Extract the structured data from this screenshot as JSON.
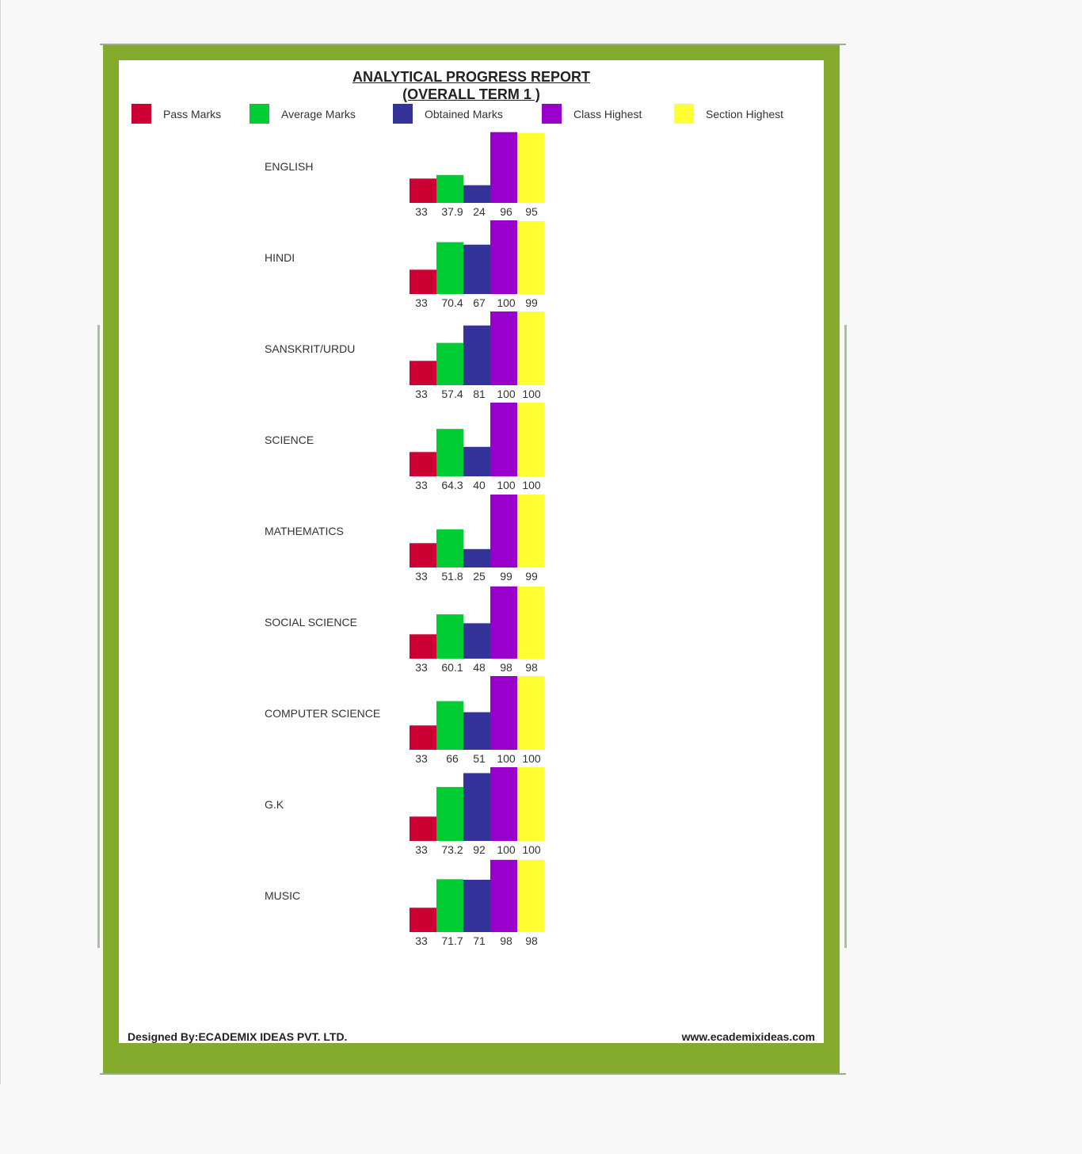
{
  "report": {
    "title_line1": "ANALYTICAL PROGRESS REPORT",
    "title_line2": "(OVERALL TERM 1 )",
    "footer_left": "Designed By:ECADEMIX IDEAS PVT. LTD.",
    "footer_right": "www.ecademixideas.com",
    "border_color": "#84aa2e"
  },
  "chart_data": {
    "type": "bar",
    "title": "ANALYTICAL PROGRESS REPORT (OVERALL TERM 1 )",
    "legend_position": "top",
    "categories": [
      "ENGLISH",
      "HINDI",
      "SANSKRIT/URDU",
      "SCIENCE",
      "MATHEMATICS",
      "SOCIAL SCIENCE",
      "COMPUTER SCIENCE",
      "G.K",
      "MUSIC"
    ],
    "series": [
      {
        "name": "Pass Marks",
        "color": "#cc0033",
        "values": [
          33,
          33,
          33,
          33,
          33,
          33,
          33,
          33,
          33
        ]
      },
      {
        "name": "Average Marks",
        "color": "#00cc33",
        "values": [
          37.9,
          70.4,
          57.4,
          64.3,
          51.8,
          60.1,
          66,
          73.2,
          71.7
        ]
      },
      {
        "name": "Obtained Marks",
        "color": "#333399",
        "values": [
          24,
          67,
          81,
          40,
          25,
          48,
          51,
          92,
          71
        ]
      },
      {
        "name": "Class Highest",
        "color": "#9900cc",
        "values": [
          96,
          100,
          100,
          100,
          99,
          98,
          100,
          100,
          98
        ]
      },
      {
        "name": "Section Highest",
        "color": "#ffff33",
        "values": [
          95,
          99,
          100,
          100,
          99,
          98,
          100,
          100,
          98
        ]
      }
    ],
    "ylim": [
      0,
      100
    ],
    "grid": false,
    "legend_colors_ui": [
      "#cc0033",
      "#00cc33",
      "#333399",
      "#9900cc",
      "#ffff33"
    ]
  }
}
